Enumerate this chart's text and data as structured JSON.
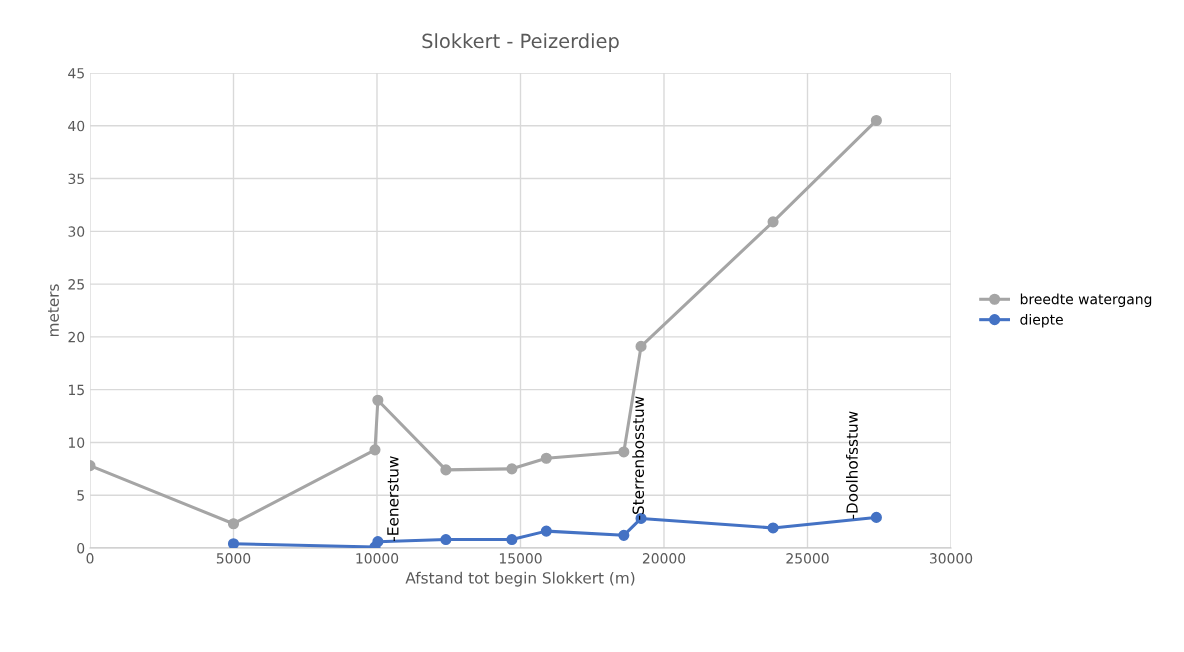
{
  "chart_data": {
    "type": "line",
    "title": "Slokkert - Peizerdiep",
    "xlabel": "Afstand tot begin Slokkert (m)",
    "ylabel": "meters",
    "series": [
      {
        "name": "breedte watergang",
        "color": "#a5a5a5",
        "x": [
          0,
          5000,
          9930,
          10030,
          12400,
          14700,
          15900,
          18600,
          19200,
          23800,
          27400
        ],
        "values": [
          7.8,
          2.3,
          9.3,
          14.0,
          7.4,
          7.5,
          8.5,
          9.1,
          19.1,
          30.9,
          40.5
        ]
      },
      {
        "name": "diepte",
        "color": "#4472c4",
        "x": [
          5000,
          9930,
          10030,
          12400,
          14700,
          15900,
          18600,
          19200,
          23800,
          27400
        ],
        "values": [
          0.4,
          0.1,
          0.6,
          0.8,
          0.8,
          1.6,
          1.2,
          2.8,
          1.9,
          2.9
        ]
      }
    ],
    "annotations": [
      {
        "text": "-Eenerstuw",
        "x": 10600,
        "y": 0.6
      },
      {
        "text": "-Sterrenbosstuw",
        "x": 19150,
        "y": 2.6
      },
      {
        "text": "-Doolhofsstuw",
        "x": 26600,
        "y": 2.7
      }
    ],
    "xlim": [
      0,
      30000
    ],
    "xticks": [
      0,
      5000,
      10000,
      15000,
      20000,
      25000,
      30000
    ],
    "ylim": [
      0,
      45
    ],
    "yticks": [
      0,
      5,
      10,
      15,
      20,
      25,
      30,
      35,
      40,
      45
    ],
    "grid": true,
    "legend": "right",
    "marker": "circle",
    "line_style": "solid"
  }
}
